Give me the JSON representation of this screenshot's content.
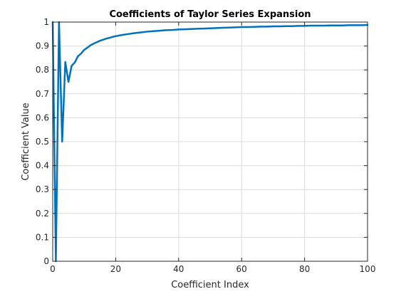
{
  "chart_data": {
    "type": "line",
    "title": "Coefficients of Taylor Series Expansion",
    "xlabel": "Coefficient Index",
    "ylabel": "Coefficient Value",
    "xlim": [
      0,
      100
    ],
    "ylim": [
      0,
      1
    ],
    "xticks": [
      "0",
      "20",
      "40",
      "60",
      "80",
      "100"
    ],
    "yticks": [
      "0",
      "0.1",
      "0.2",
      "0.3",
      "0.4",
      "0.5",
      "0.6",
      "0.7",
      "0.8",
      "0.9",
      "1"
    ],
    "grid": true,
    "line_color": "#0072BD",
    "series": [
      {
        "x": [
          0,
          1,
          2,
          3,
          4,
          5,
          6,
          7,
          8,
          9,
          10,
          11,
          12,
          13,
          14,
          15,
          16,
          17,
          18,
          19,
          20,
          22,
          24,
          26,
          28,
          30,
          32,
          34,
          36,
          38,
          40,
          42,
          44,
          46,
          48,
          50,
          52,
          54,
          56,
          58,
          60,
          62,
          64,
          66,
          68,
          70,
          72,
          74,
          76,
          78,
          80,
          82,
          84,
          86,
          88,
          90,
          92,
          94,
          96,
          98,
          100
        ],
        "y": [
          1,
          0,
          1,
          0.5,
          0.833,
          0.75,
          0.817,
          0.831,
          0.857,
          0.868,
          0.884,
          0.893,
          0.903,
          0.91,
          0.916,
          0.922,
          0.926,
          0.931,
          0.934,
          0.938,
          0.941,
          0.946,
          0.95,
          0.954,
          0.957,
          0.96,
          0.962,
          0.964,
          0.966,
          0.967,
          0.969,
          0.97,
          0.971,
          0.972,
          0.973,
          0.974,
          0.975,
          0.976,
          0.977,
          0.978,
          0.979,
          0.979,
          0.98,
          0.981,
          0.981,
          0.982,
          0.982,
          0.983,
          0.983,
          0.984,
          0.984,
          0.985,
          0.985,
          0.985,
          0.986,
          0.986,
          0.986,
          0.987,
          0.987,
          0.987,
          0.988
        ]
      }
    ]
  }
}
